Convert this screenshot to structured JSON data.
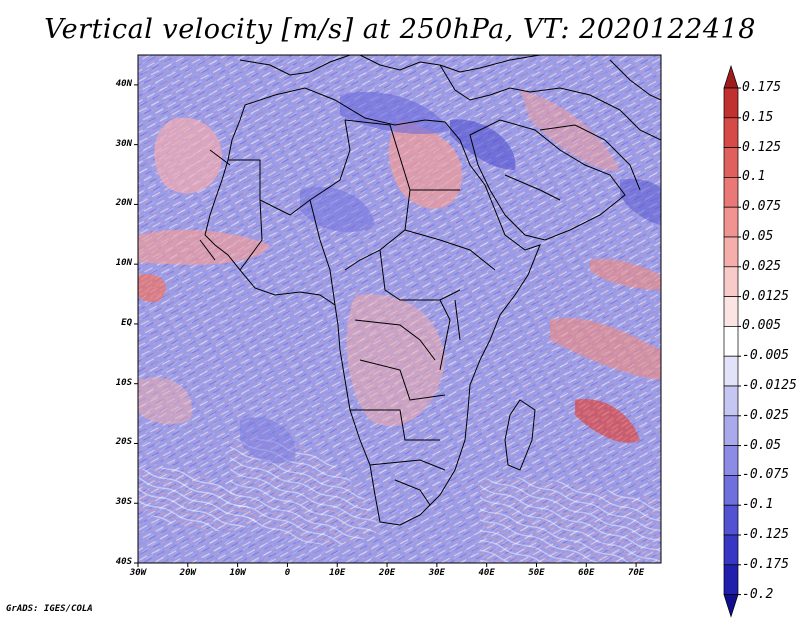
{
  "title": "Vertical velocity [m/s] at 250hPa, VT: 2020122418",
  "credit": "GrADS: IGES/COLA",
  "map": {
    "lon_range": [
      -30,
      75
    ],
    "lat_range": [
      -40,
      45
    ],
    "lat_labels": [
      "40N",
      "30N",
      "20N",
      "10N",
      "EQ",
      "10S",
      "20S",
      "30S",
      "40S"
    ],
    "lat_values": [
      40,
      30,
      20,
      10,
      0,
      -10,
      -20,
      -30,
      -40
    ],
    "lon_labels": [
      "30W",
      "20W",
      "10W",
      "0",
      "10E",
      "20E",
      "30E",
      "40E",
      "50E",
      "60E",
      "70E"
    ],
    "lon_values": [
      -30,
      -20,
      -10,
      0,
      10,
      20,
      30,
      40,
      50,
      60,
      70
    ],
    "background_color": "#9c9ce6"
  },
  "colorbar": {
    "labels": [
      "0.175",
      "0.15",
      "0.125",
      "0.1",
      "0.075",
      "0.05",
      "0.025",
      "0.0125",
      "0.005",
      "-0.005",
      "-0.0125",
      "-0.025",
      "-0.05",
      "-0.075",
      "-0.1",
      "-0.125",
      "-0.175",
      "-0.2"
    ],
    "colors": [
      "#9e1c1c",
      "#c0312f",
      "#d64a48",
      "#e0605e",
      "#ea7876",
      "#f09391",
      "#f5aeac",
      "#f9caca",
      "#fce4e4",
      "#ffffff",
      "#e2e2f8",
      "#c6c6f2",
      "#a9a9ec",
      "#8c8ce6",
      "#6f6fdd",
      "#5252d3",
      "#3737c4",
      "#2020ad",
      "#10108f"
    ]
  }
}
